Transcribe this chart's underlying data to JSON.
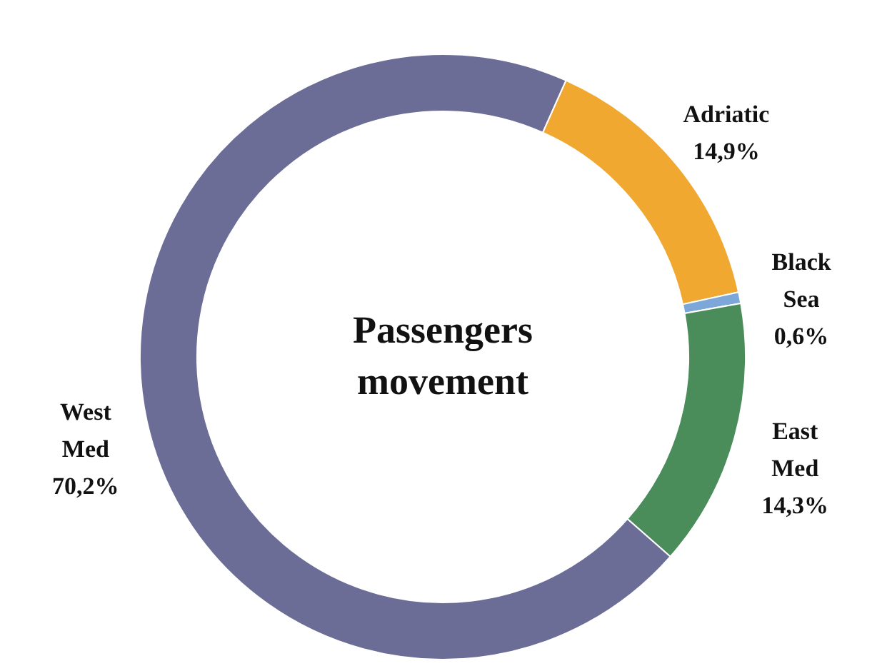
{
  "chart_data": {
    "type": "donut",
    "title": "Passengers movement",
    "categories": [
      "Adriatic",
      "Black Sea",
      "East Med",
      "West Med"
    ],
    "values": [
      14.9,
      0.6,
      14.3,
      70.2
    ],
    "value_labels": [
      "14,9%",
      "0,6%",
      "14,3%",
      "70,2%"
    ],
    "colors": [
      "#f0a830",
      "#7da7d9",
      "#4a8c5a",
      "#6b6d96"
    ]
  }
}
